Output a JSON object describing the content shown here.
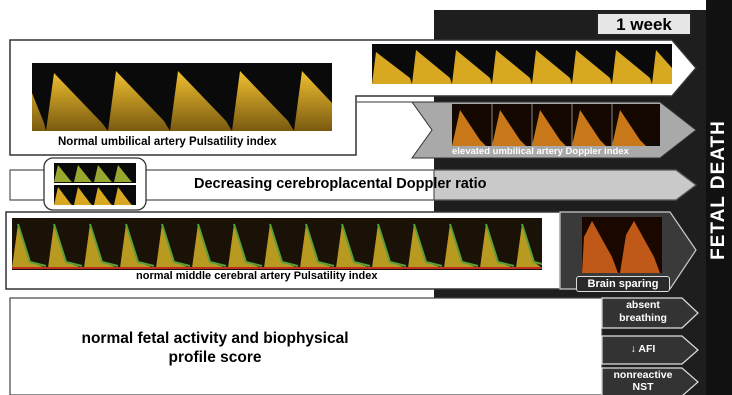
{
  "timeline": {
    "week_label": "1 week",
    "outcome": "FETAL DEATH"
  },
  "rows": {
    "umbilical": {
      "normal_label": "Normal umbilical artery Pulsatility index",
      "elevated_label": "elevated umbilical artery Doppler index"
    },
    "cerebroplacental": {
      "label": "Decreasing cerebroplacental Doppler ratio"
    },
    "mca": {
      "normal_label": "normal middle cerebral artery Pulsatility index",
      "sparing_label": "Brain sparing"
    },
    "biophysical": {
      "label_line1": "normal fetal activity and biophysical",
      "label_line2": "profile score",
      "signs": [
        {
          "line1": "absent",
          "line2": "breathing"
        },
        {
          "line1": "↓ AFI",
          "line2": ""
        },
        {
          "line1": "nonreactive",
          "line2": "NST"
        }
      ]
    }
  },
  "colors": {
    "dark_panel": "#1e1e1e",
    "arrow_gray": "#c9c9c9",
    "doppler_gold": "#d8a820",
    "doppler_green": "#6a9a20"
  }
}
